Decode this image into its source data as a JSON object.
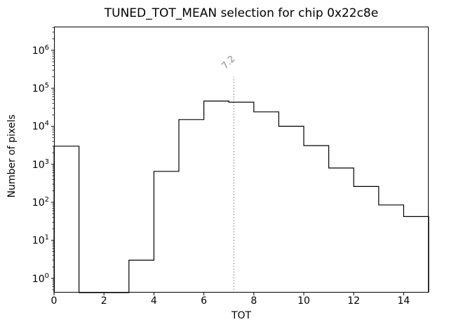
{
  "chart_data": {
    "type": "bar",
    "subtype": "step_histogram",
    "title": "TUNED_TOT_MEAN selection for chip 0x22c8e",
    "xlabel": "TOT",
    "ylabel": "Number of pixels",
    "yscale": "log",
    "grid": false,
    "legend_position": "none",
    "xlim": [
      0,
      15
    ],
    "ylim": [
      0.42,
      4200000
    ],
    "x_ticks": [
      0,
      2,
      4,
      6,
      8,
      10,
      12,
      14
    ],
    "y_tick_exponents": [
      0,
      1,
      2,
      3,
      4,
      5,
      6
    ],
    "bin_edges": [
      0,
      1,
      2,
      3,
      4,
      5,
      6,
      7,
      8,
      9,
      10,
      11,
      12,
      13,
      14,
      15
    ],
    "counts": [
      3000,
      0,
      0,
      3,
      650,
      15000,
      46000,
      43000,
      24000,
      10000,
      3100,
      800,
      260,
      85,
      42
    ],
    "line_color": "#000000",
    "background_color": "#ffffff",
    "annotation": {
      "x": 7.2,
      "label": "7.2",
      "color": "#8f8f8f",
      "line_style": "dotted",
      "y_top": 200000
    }
  }
}
